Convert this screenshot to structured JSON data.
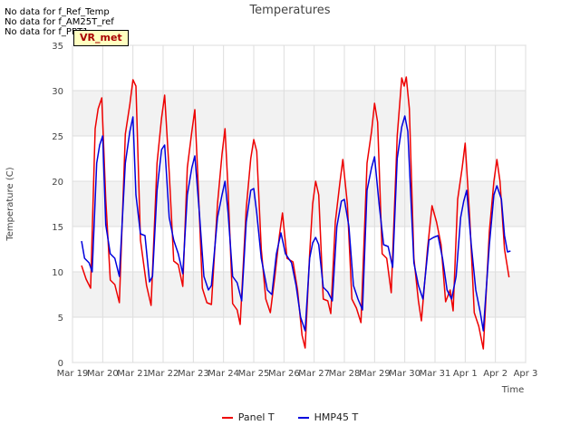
{
  "chart_data": {
    "type": "line",
    "title": "Temperatures",
    "xlabel": "Time",
    "ylabel": "Temperature (C)",
    "ylim": [
      0,
      35
    ],
    "yticks": [
      "0",
      "5",
      "10",
      "15",
      "20",
      "25",
      "30",
      "35"
    ],
    "xticks": [
      "Mar 19",
      "Mar 20",
      "Mar 21",
      "Mar 22",
      "Mar 23",
      "Mar 24",
      "Mar 25",
      "Mar 26",
      "Mar 27",
      "Mar 28",
      "Mar 29",
      "Mar 30",
      "Mar 31",
      "Apr 1",
      "Apr 2",
      "Apr 3"
    ],
    "xlim_days": [
      0,
      15
    ],
    "grid": true,
    "notices": [
      "No data for f_Ref_Temp",
      "No data for f_AM25T_ref",
      "No data for f_PRT1"
    ],
    "badge": "VR_met",
    "series": [
      {
        "name": "Panel T",
        "color": "#ee0000",
        "points": [
          [
            0.3,
            10.7
          ],
          [
            0.45,
            9.2
          ],
          [
            0.6,
            8.2
          ],
          [
            0.75,
            25.8
          ],
          [
            0.85,
            28.0
          ],
          [
            0.97,
            29.2
          ],
          [
            1.1,
            18.0
          ],
          [
            1.25,
            9.1
          ],
          [
            1.4,
            8.6
          ],
          [
            1.55,
            6.6
          ],
          [
            1.75,
            25.2
          ],
          [
            1.9,
            28.5
          ],
          [
            2.0,
            31.2
          ],
          [
            2.1,
            30.5
          ],
          [
            2.25,
            13.5
          ],
          [
            2.45,
            8.5
          ],
          [
            2.6,
            6.3
          ],
          [
            2.8,
            22.0
          ],
          [
            2.95,
            27.0
          ],
          [
            3.05,
            29.5
          ],
          [
            3.2,
            21.0
          ],
          [
            3.35,
            11.2
          ],
          [
            3.5,
            10.8
          ],
          [
            3.65,
            8.4
          ],
          [
            3.8,
            21.5
          ],
          [
            3.95,
            25.5
          ],
          [
            4.05,
            27.9
          ],
          [
            4.15,
            20.5
          ],
          [
            4.3,
            8.2
          ],
          [
            4.45,
            6.6
          ],
          [
            4.6,
            6.4
          ],
          [
            4.8,
            17.5
          ],
          [
            4.95,
            23.0
          ],
          [
            5.05,
            25.8
          ],
          [
            5.15,
            19.0
          ],
          [
            5.3,
            6.5
          ],
          [
            5.45,
            5.8
          ],
          [
            5.55,
            4.2
          ],
          [
            5.75,
            17.0
          ],
          [
            5.9,
            22.5
          ],
          [
            6.0,
            24.6
          ],
          [
            6.1,
            23.3
          ],
          [
            6.25,
            12.5
          ],
          [
            6.4,
            7.0
          ],
          [
            6.55,
            5.5
          ],
          [
            6.7,
            9.5
          ],
          [
            6.85,
            14.0
          ],
          [
            6.95,
            16.5
          ],
          [
            7.1,
            11.5
          ],
          [
            7.3,
            11.1
          ],
          [
            7.45,
            8.0
          ],
          [
            7.6,
            3.0
          ],
          [
            7.7,
            1.6
          ],
          [
            7.85,
            12.0
          ],
          [
            7.95,
            17.5
          ],
          [
            8.05,
            20.0
          ],
          [
            8.15,
            18.5
          ],
          [
            8.3,
            7.0
          ],
          [
            8.45,
            6.8
          ],
          [
            8.55,
            5.4
          ],
          [
            8.7,
            15.5
          ],
          [
            8.85,
            19.8
          ],
          [
            8.95,
            22.4
          ],
          [
            9.1,
            17.5
          ],
          [
            9.25,
            7.0
          ],
          [
            9.4,
            6.0
          ],
          [
            9.55,
            4.4
          ],
          [
            9.75,
            22.0
          ],
          [
            9.9,
            25.5
          ],
          [
            10.0,
            28.6
          ],
          [
            10.1,
            26.5
          ],
          [
            10.25,
            12.0
          ],
          [
            10.4,
            11.5
          ],
          [
            10.55,
            7.7
          ],
          [
            10.75,
            25.0
          ],
          [
            10.9,
            31.4
          ],
          [
            10.98,
            30.5
          ],
          [
            11.05,
            31.5
          ],
          [
            11.15,
            28.0
          ],
          [
            11.3,
            11.5
          ],
          [
            11.45,
            6.8
          ],
          [
            11.55,
            4.6
          ],
          [
            11.75,
            12.5
          ],
          [
            11.9,
            17.3
          ],
          [
            12.05,
            15.5
          ],
          [
            12.2,
            13.0
          ],
          [
            12.35,
            6.7
          ],
          [
            12.5,
            8.0
          ],
          [
            12.6,
            5.7
          ],
          [
            12.75,
            18.0
          ],
          [
            12.9,
            21.5
          ],
          [
            13.0,
            24.2
          ],
          [
            13.15,
            16.0
          ],
          [
            13.3,
            5.5
          ],
          [
            13.45,
            4.0
          ],
          [
            13.6,
            1.5
          ],
          [
            13.8,
            14.5
          ],
          [
            13.95,
            20.0
          ],
          [
            14.05,
            22.4
          ],
          [
            14.15,
            20.0
          ],
          [
            14.3,
            12.5
          ],
          [
            14.45,
            9.4
          ]
        ]
      },
      {
        "name": "HMP45 T",
        "color": "#0000dd",
        "points": [
          [
            0.3,
            13.4
          ],
          [
            0.4,
            11.5
          ],
          [
            0.55,
            11.0
          ],
          [
            0.65,
            10.0
          ],
          [
            0.8,
            22.0
          ],
          [
            0.9,
            24.0
          ],
          [
            1.0,
            25.0
          ],
          [
            1.1,
            15.2
          ],
          [
            1.25,
            12.0
          ],
          [
            1.4,
            11.5
          ],
          [
            1.55,
            9.5
          ],
          [
            1.75,
            22.0
          ],
          [
            1.9,
            25.5
          ],
          [
            2.0,
            27.1
          ],
          [
            2.1,
            18.5
          ],
          [
            2.25,
            14.2
          ],
          [
            2.4,
            14.0
          ],
          [
            2.55,
            8.9
          ],
          [
            2.65,
            9.5
          ],
          [
            2.8,
            19.0
          ],
          [
            2.95,
            23.5
          ],
          [
            3.05,
            24.0
          ],
          [
            3.2,
            16.0
          ],
          [
            3.35,
            13.5
          ],
          [
            3.5,
            12.0
          ],
          [
            3.65,
            9.8
          ],
          [
            3.8,
            18.5
          ],
          [
            3.95,
            21.5
          ],
          [
            4.05,
            22.8
          ],
          [
            4.2,
            16.5
          ],
          [
            4.35,
            9.5
          ],
          [
            4.5,
            8.0
          ],
          [
            4.6,
            8.5
          ],
          [
            4.8,
            16.0
          ],
          [
            4.95,
            18.5
          ],
          [
            5.05,
            20.0
          ],
          [
            5.15,
            16.5
          ],
          [
            5.3,
            9.5
          ],
          [
            5.45,
            8.8
          ],
          [
            5.6,
            6.8
          ],
          [
            5.75,
            15.5
          ],
          [
            5.9,
            19.0
          ],
          [
            6.0,
            19.2
          ],
          [
            6.1,
            16.5
          ],
          [
            6.25,
            11.5
          ],
          [
            6.45,
            8.0
          ],
          [
            6.6,
            7.5
          ],
          [
            6.75,
            12.0
          ],
          [
            6.9,
            14.3
          ],
          [
            7.05,
            12.0
          ],
          [
            7.25,
            11.0
          ],
          [
            7.4,
            8.5
          ],
          [
            7.55,
            5.0
          ],
          [
            7.7,
            3.5
          ],
          [
            7.85,
            11.5
          ],
          [
            7.95,
            13.2
          ],
          [
            8.05,
            13.8
          ],
          [
            8.15,
            13.0
          ],
          [
            8.3,
            8.3
          ],
          [
            8.45,
            7.8
          ],
          [
            8.6,
            6.8
          ],
          [
            8.75,
            15.0
          ],
          [
            8.9,
            17.8
          ],
          [
            9.0,
            18.0
          ],
          [
            9.15,
            15.0
          ],
          [
            9.3,
            8.5
          ],
          [
            9.45,
            7.0
          ],
          [
            9.6,
            5.8
          ],
          [
            9.75,
            19.0
          ],
          [
            9.9,
            21.5
          ],
          [
            10.0,
            22.7
          ],
          [
            10.15,
            17.5
          ],
          [
            10.3,
            13.0
          ],
          [
            10.45,
            12.8
          ],
          [
            10.6,
            10.5
          ],
          [
            10.75,
            22.5
          ],
          [
            10.9,
            26.0
          ],
          [
            11.0,
            27.2
          ],
          [
            11.1,
            25.5
          ],
          [
            11.3,
            11.0
          ],
          [
            11.45,
            8.5
          ],
          [
            11.6,
            7.0
          ],
          [
            11.8,
            13.5
          ],
          [
            11.95,
            13.8
          ],
          [
            12.1,
            14.0
          ],
          [
            12.25,
            11.5
          ],
          [
            12.4,
            8.0
          ],
          [
            12.55,
            7.0
          ],
          [
            12.7,
            9.5
          ],
          [
            12.85,
            16.0
          ],
          [
            12.95,
            17.8
          ],
          [
            13.05,
            19.0
          ],
          [
            13.2,
            13.0
          ],
          [
            13.35,
            8.0
          ],
          [
            13.5,
            5.5
          ],
          [
            13.6,
            3.5
          ],
          [
            13.8,
            13.0
          ],
          [
            13.95,
            18.5
          ],
          [
            14.05,
            19.5
          ],
          [
            14.2,
            18.0
          ],
          [
            14.3,
            14.0
          ],
          [
            14.4,
            12.2
          ],
          [
            14.5,
            12.3
          ]
        ]
      }
    ]
  }
}
